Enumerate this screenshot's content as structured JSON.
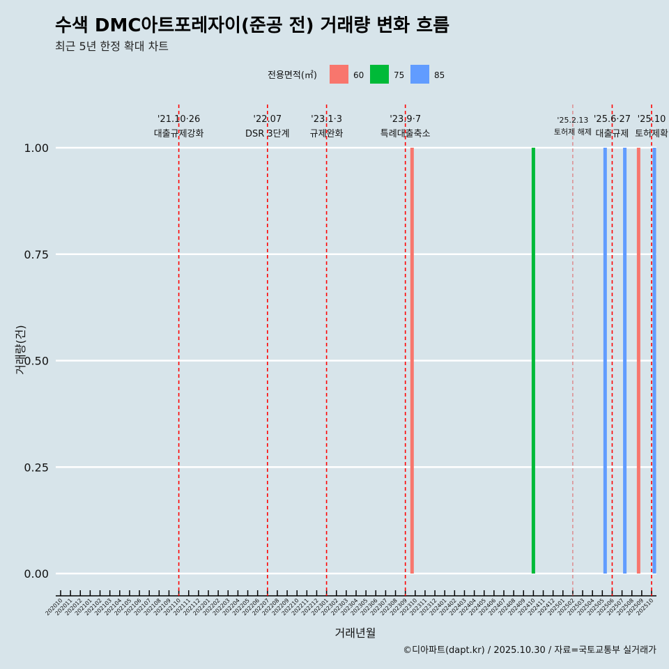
{
  "chart_data": {
    "type": "bar",
    "title": "수색 DMC아트포레자이(준공 전) 거래량 변화 흐름",
    "subtitle": "최근 5년 한정 확대 차트",
    "xlabel": "거래년월",
    "ylabel": "거래량(건)",
    "caption": "©디아파트(dapt.kr) / 2025.10.30 / 자료=국토교통부 실거래가",
    "legend": {
      "title": "전용면적(㎡)",
      "position": "top",
      "entries": [
        {
          "name": "60",
          "color": "#f8766d"
        },
        {
          "name": "75",
          "color": "#00ba38"
        },
        {
          "name": "85",
          "color": "#619cff"
        }
      ]
    },
    "categories": [
      "202010",
      "202011",
      "202012",
      "202101",
      "202102",
      "202103",
      "202104",
      "202105",
      "202106",
      "202107",
      "202108",
      "202109",
      "202110",
      "202111",
      "202112",
      "202201",
      "202202",
      "202203",
      "202204",
      "202205",
      "202206",
      "202207",
      "202208",
      "202209",
      "202210",
      "202211",
      "202212",
      "202301",
      "202302",
      "202303",
      "202304",
      "202305",
      "202306",
      "202307",
      "202308",
      "202309",
      "202310",
      "202311",
      "202312",
      "202401",
      "202402",
      "202403",
      "202404",
      "202405",
      "202406",
      "202407",
      "202408",
      "202409",
      "202410",
      "202411",
      "202412",
      "202501",
      "202502",
      "202503",
      "202504",
      "202505",
      "202506",
      "202507",
      "202508",
      "202509",
      "202510"
    ],
    "yticks": [
      "0.00",
      "0.25",
      "0.50",
      "0.75",
      "1.00"
    ],
    "ylim": [
      0,
      1
    ],
    "bars": [
      {
        "month": "202310",
        "area": "60",
        "value": 1
      },
      {
        "month": "202410",
        "area": "75",
        "value": 1
      },
      {
        "month": "202505",
        "area": "85",
        "value": 1
      },
      {
        "month": "202507",
        "area": "85",
        "value": 1
      },
      {
        "month": "202509",
        "area": "60",
        "value": 1
      },
      {
        "month": "202510",
        "area": "85",
        "value": 1
      }
    ],
    "events": [
      {
        "month": "202110",
        "date": "'21.10·26",
        "label": "대출규제강화",
        "style": "main"
      },
      {
        "month": "202207",
        "date": "'22.07",
        "label": "DSR 3단계",
        "style": "main"
      },
      {
        "month": "202301",
        "date": "'23.1·3",
        "label": "규제완화",
        "style": "main"
      },
      {
        "month": "202309",
        "date": "'23.9·7",
        "label": "특례대출축소",
        "style": "main"
      },
      {
        "month": "202502",
        "date": "'25.2.13",
        "label": "토허제 해제",
        "style": "minor"
      },
      {
        "month": "202506",
        "date": "'25.6·27",
        "label": "대출규제",
        "style": "main"
      },
      {
        "month": "202510",
        "date": "'25.10",
        "label": "토허제확",
        "style": "main"
      }
    ]
  }
}
